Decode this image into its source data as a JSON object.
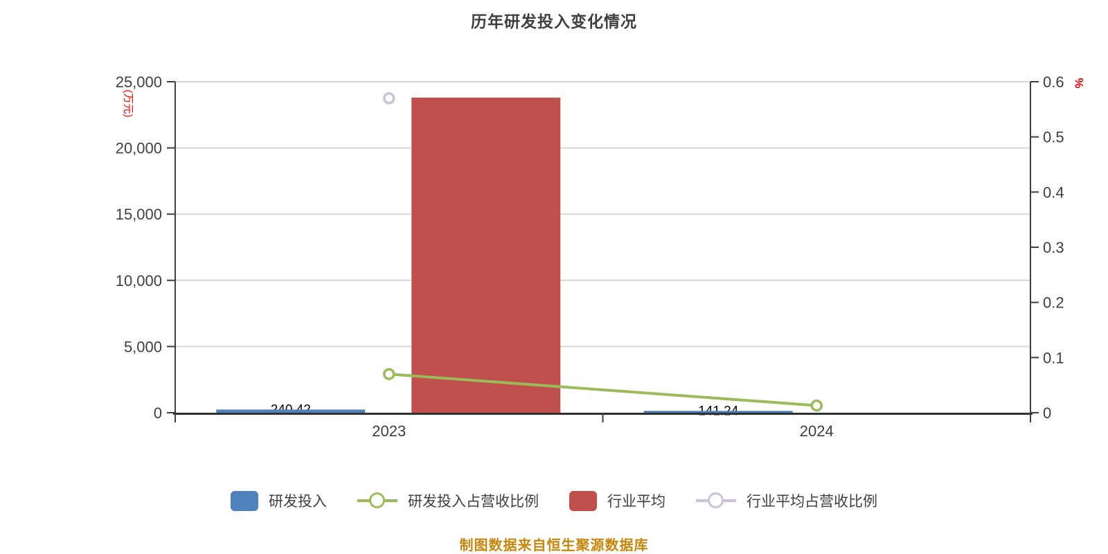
{
  "title": "历年研发投入变化情况",
  "caption": "制图数据来自恒生聚源数据库",
  "colors": {
    "rnd_bar": "#4F81BD",
    "rnd_ratio_line": "#9BBB59",
    "industry_bar": "#C0504D",
    "industry_ratio_marker": "#CCC0DA",
    "axis_text": "#3F3F3F",
    "axis_line": "#3F3F3F",
    "grid_line": "#D6D6D6",
    "axis_unit_text": "#FF0000",
    "bar_value_label": "#000000",
    "caption_text": "#C8860A",
    "title_text": "#3F3F3F"
  },
  "chart_data": {
    "type": "bar",
    "subtype": "combo-bar-line-dual-axis",
    "title": "历年研发投入变化情况",
    "categories": [
      "2023",
      "2024"
    ],
    "series": [
      {
        "name": "研发投入",
        "type": "bar",
        "axis": "left",
        "values": [
          240.42,
          141.24
        ],
        "labels": [
          "240.42",
          "141.24"
        ],
        "color": "#4F81BD"
      },
      {
        "name": "研发投入占营收比例",
        "type": "line",
        "axis": "right",
        "values": [
          0.07,
          0.013
        ],
        "color": "#9BBB59"
      },
      {
        "name": "行业平均",
        "type": "bar",
        "axis": "left",
        "values": [
          23800,
          null
        ],
        "color": "#C0504D"
      },
      {
        "name": "行业平均占营收比例",
        "type": "line",
        "axis": "right",
        "values": [
          0.57,
          null
        ],
        "color": "#CCC0DA"
      }
    ],
    "left_axis": {
      "title": "(万元)",
      "min": 0,
      "max": 25000,
      "ticks": [
        "0",
        "5,000",
        "10,000",
        "15,000",
        "20,000",
        "25,000"
      ]
    },
    "right_axis": {
      "title": "%",
      "min": 0,
      "max": 0.6,
      "ticks": [
        "0",
        "0.1",
        "0.2",
        "0.3",
        "0.4",
        "0.5",
        "0.6"
      ]
    },
    "grid": true,
    "legend_position": "bottom"
  },
  "legend": [
    {
      "label": "研发投入",
      "swatch": "rect",
      "color": "#4F81BD"
    },
    {
      "label": "研发投入占营收比例",
      "swatch": "line-marker",
      "color": "#9BBB59"
    },
    {
      "label": "行业平均",
      "swatch": "rect",
      "color": "#C0504D"
    },
    {
      "label": "行业平均占营收比例",
      "swatch": "line-marker",
      "color": "#CCC0DA"
    }
  ]
}
